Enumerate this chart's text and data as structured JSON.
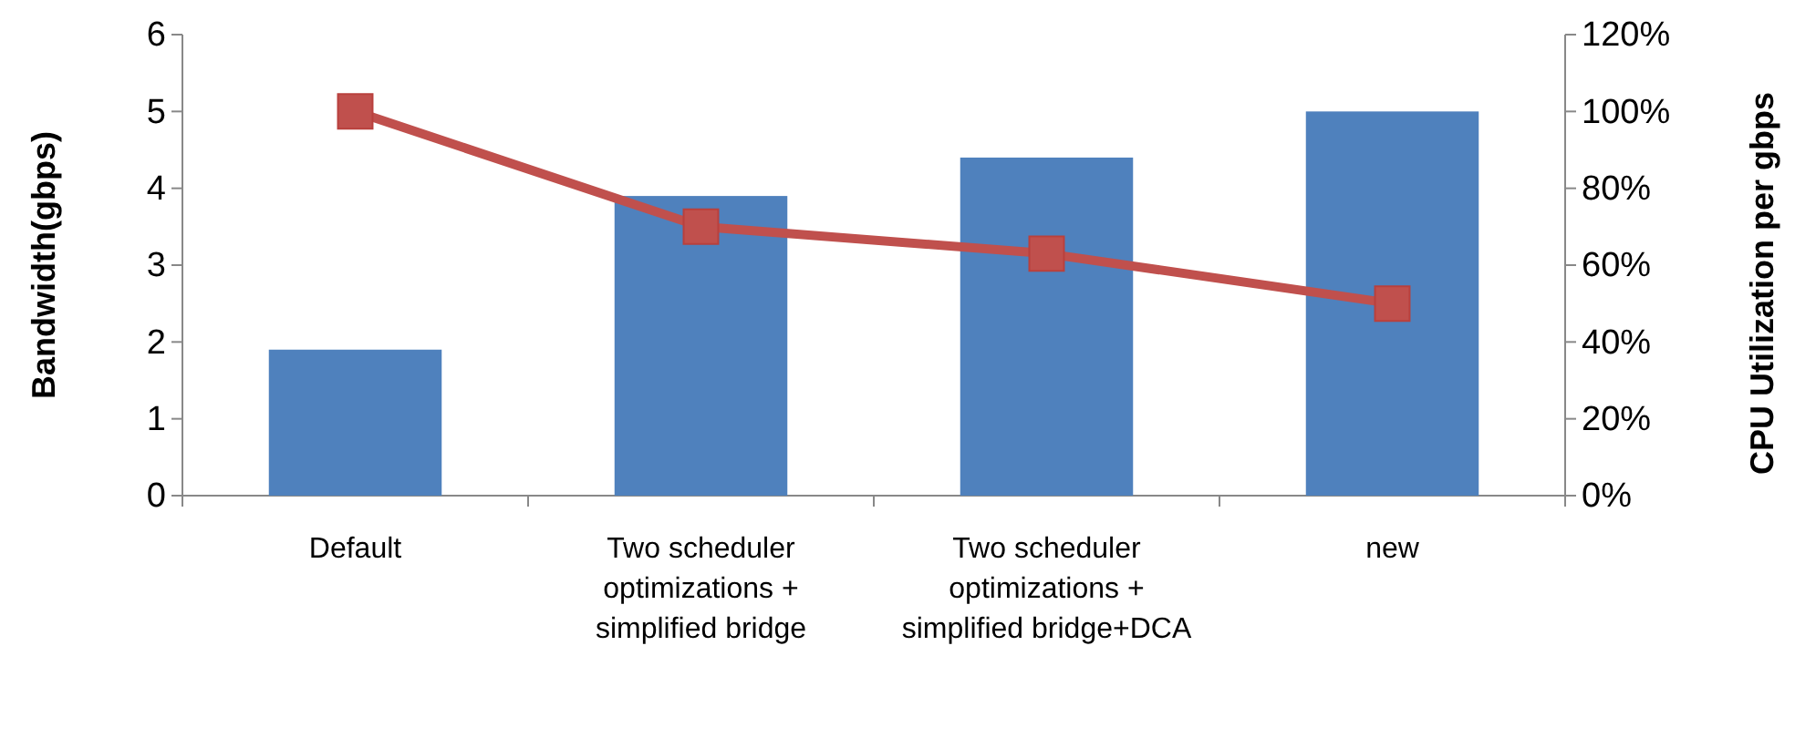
{
  "chart_data": {
    "type": "bar",
    "categories": [
      "Default",
      "Two scheduler optimizations + simplified bridge",
      "Two scheduler optimizations + simplified bridge+DCA",
      "new"
    ],
    "ylabel": "Bandwidth(gbps)",
    "y2label": "CPU Utilization per gbps",
    "ylim": [
      0,
      6
    ],
    "yticks": [
      0,
      1,
      2,
      3,
      4,
      5,
      6
    ],
    "y2lim": [
      0,
      120
    ],
    "y2ticks": [
      {
        "value": 0,
        "label": "0%"
      },
      {
        "value": 20,
        "label": "20%"
      },
      {
        "value": 40,
        "label": "40%"
      },
      {
        "value": 60,
        "label": "60%"
      },
      {
        "value": 80,
        "label": "80%"
      },
      {
        "value": 100,
        "label": "100%"
      },
      {
        "value": 120,
        "label": "120%"
      }
    ],
    "series": [
      {
        "color": "#4f81bd",
        "values": [
          1.9,
          3.9,
          4.4,
          5.0
        ]
      },
      {
        "type": "line",
        "axis": "y2",
        "color": "#c0504d",
        "marker": "square",
        "values": [
          100,
          70,
          63,
          50
        ]
      }
    ],
    "grid": false
  }
}
